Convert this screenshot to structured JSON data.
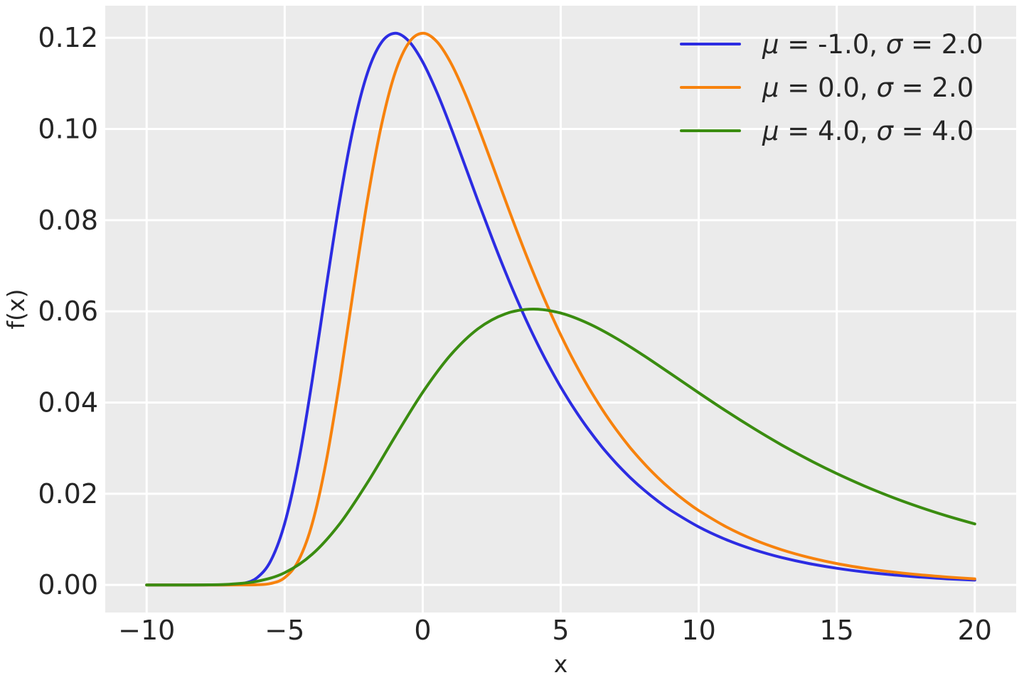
{
  "figure": {
    "background": "#ffffff",
    "axes_background": "#ebebeb",
    "grid_color": "#ffffff",
    "text_color": "#262626"
  },
  "chart_data": {
    "type": "line",
    "title": "",
    "xlabel": "x",
    "ylabel": "f(x)",
    "xlim": [
      -11.5,
      21.5
    ],
    "ylim": [
      -0.00605,
      0.12704
    ],
    "grid": true,
    "legend_position": "upper right",
    "x_ticks": {
      "values": [
        -10,
        -5,
        0,
        5,
        10,
        15,
        20
      ],
      "labels": [
        "−10",
        "−5",
        "0",
        "5",
        "10",
        "15",
        "20"
      ]
    },
    "y_ticks": {
      "values": [
        0.0,
        0.02,
        0.04,
        0.06,
        0.08,
        0.1,
        0.12
      ],
      "labels": [
        "0.00",
        "0.02",
        "0.04",
        "0.06",
        "0.08",
        "0.10",
        "0.12"
      ]
    },
    "series": [
      {
        "name": "mu = -1.0, sigma = 2.0",
        "color": "#2c2ce2",
        "mu": -1.0,
        "sigma": 2.0,
        "peak": {
          "x": -1.0,
          "y": 0.121
        },
        "x": [
          -10,
          -9,
          -8,
          -7,
          -6.5,
          -6,
          -5.5,
          -5,
          -4.5,
          -4,
          -3.5,
          -3,
          -2.5,
          -2,
          -1.5,
          -1,
          -0.5,
          0,
          0.5,
          1,
          1.5,
          2,
          2.5,
          3,
          3.5,
          4,
          4.5,
          5,
          5.5,
          6,
          6.5,
          7,
          7.5,
          8,
          8.5,
          9,
          10,
          11,
          12,
          13,
          14,
          15,
          16,
          17,
          18,
          19,
          20
        ],
        "y": [
          0,
          0,
          0,
          4e-05,
          0.00032,
          0.00158,
          0.00534,
          0.01347,
          0.02693,
          0.04492,
          0.06507,
          0.08448,
          0.10069,
          0.11231,
          0.11894,
          0.12099,
          0.11925,
          0.11471,
          0.10826,
          0.10066,
          0.09252,
          0.08428,
          0.07623,
          0.06858,
          0.06144,
          0.05485,
          0.04885,
          0.04342,
          0.03853,
          0.03415,
          0.03023,
          0.02675,
          0.02366,
          0.02091,
          0.01848,
          0.01632,
          0.01273,
          0.00992,
          0.00773,
          0.00602,
          0.00469,
          0.00366,
          0.00285,
          0.00222,
          0.00173,
          0.00134,
          0.00105
        ]
      },
      {
        "name": "mu = 0.0, sigma = 2.0",
        "color": "#f7820d",
        "mu": 0.0,
        "sigma": 2.0,
        "peak": {
          "x": 0.0,
          "y": 0.121
        },
        "x": [
          -10,
          -9,
          -8,
          -7,
          -6,
          -5.5,
          -5,
          -4.5,
          -4,
          -3.5,
          -3,
          -2.5,
          -2,
          -1.5,
          -1,
          -0.5,
          0,
          0.5,
          1,
          1.5,
          2,
          2.5,
          3,
          3.5,
          4,
          4.5,
          5,
          5.5,
          6,
          6.5,
          7,
          7.5,
          8,
          8.5,
          9,
          9.5,
          10,
          11,
          12,
          13,
          14,
          15,
          16,
          17,
          18,
          19,
          20
        ],
        "y": [
          0,
          0,
          0,
          0,
          4e-05,
          0.00032,
          0.00158,
          0.00534,
          0.01347,
          0.02693,
          0.04492,
          0.06507,
          0.08448,
          0.10069,
          0.11231,
          0.11894,
          0.12099,
          0.11925,
          0.11471,
          0.10826,
          0.10066,
          0.09252,
          0.08428,
          0.07623,
          0.06858,
          0.06144,
          0.05485,
          0.04885,
          0.04342,
          0.03853,
          0.03415,
          0.03023,
          0.02675,
          0.02366,
          0.02091,
          0.01848,
          0.01632,
          0.01273,
          0.00992,
          0.00773,
          0.00602,
          0.00469,
          0.00366,
          0.00285,
          0.00222,
          0.00173,
          0.00134
        ]
      },
      {
        "name": "mu = 4.0, sigma = 4.0",
        "color": "#3a8c10",
        "mu": 4.0,
        "sigma": 4.0,
        "peak": {
          "x": 4.0,
          "y": 0.0605
        },
        "x": [
          -10,
          -9,
          -8,
          -7,
          -6,
          -5,
          -4,
          -3,
          -2,
          -1,
          0,
          1,
          2,
          3,
          4,
          5,
          6,
          7,
          8,
          9,
          10,
          11,
          12,
          13,
          14,
          15,
          16,
          17,
          18,
          19,
          20
        ],
        "y": [
          0,
          0,
          2e-05,
          0.00016,
          0.00079,
          0.00267,
          0.00674,
          0.01346,
          0.02246,
          0.03253,
          0.04224,
          0.05035,
          0.05616,
          0.05947,
          0.06049,
          0.05962,
          0.05735,
          0.05413,
          0.05033,
          0.04626,
          0.04214,
          0.03812,
          0.03429,
          0.03072,
          0.02743,
          0.02443,
          0.02171,
          0.01926,
          0.01707,
          0.01512,
          0.01338
        ]
      }
    ],
    "legend": [
      {
        "series": 0,
        "parts": [
          [
            "i",
            "μ"
          ],
          [
            "r",
            " = -1.0, "
          ],
          [
            "i",
            "σ"
          ],
          [
            "r",
            " = 2.0"
          ]
        ]
      },
      {
        "series": 1,
        "parts": [
          [
            "i",
            "μ"
          ],
          [
            "r",
            " = 0.0, "
          ],
          [
            "i",
            "σ"
          ],
          [
            "r",
            " = 2.0"
          ]
        ]
      },
      {
        "series": 2,
        "parts": [
          [
            "i",
            "μ"
          ],
          [
            "r",
            " = 4.0, "
          ],
          [
            "i",
            "σ"
          ],
          [
            "r",
            " = 4.0"
          ]
        ]
      }
    ]
  }
}
